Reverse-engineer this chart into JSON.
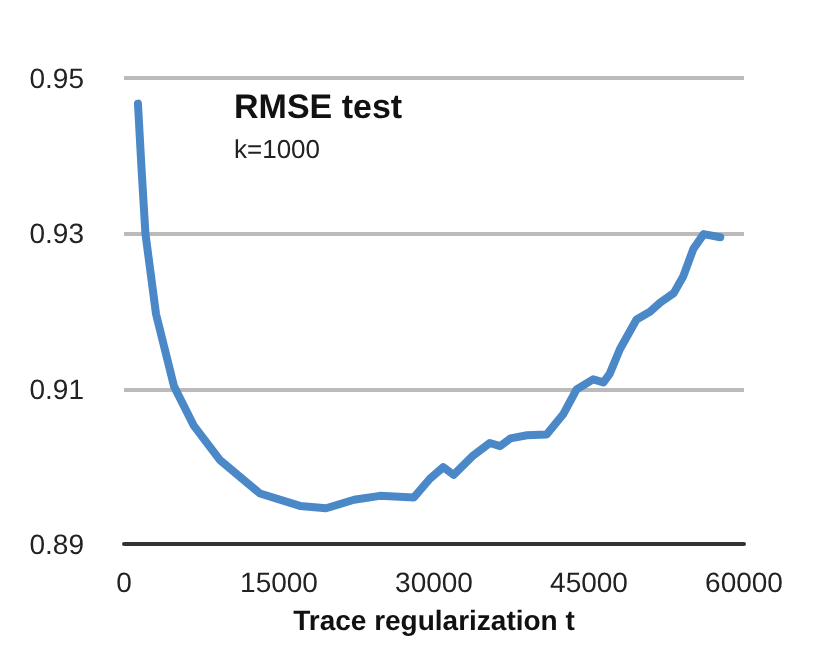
{
  "chart_data": {
    "type": "line",
    "title": "RMSE test",
    "subtitle": "k=1000",
    "xlabel": "Trace regularization t",
    "x": [
      1350,
      1680,
      2070,
      3100,
      4840,
      6770,
      9290,
      13160,
      17030,
      19550,
      22260,
      24770,
      28060,
      29600,
      30900,
      31900,
      33800,
      35400,
      36400,
      37400,
      39000,
      40900,
      42500,
      43800,
      45400,
      46400,
      47000,
      48000,
      49600,
      50900,
      51900,
      53200,
      54100,
      55100,
      56100,
      57700
    ],
    "series": [
      {
        "color": "#4a88c8",
        "values": [
          0.9467,
          0.9387,
          0.93,
          0.9196,
          0.9103,
          0.9052,
          0.9008,
          0.8965,
          0.8949,
          0.8946,
          0.8957,
          0.8962,
          0.896,
          0.8984,
          0.8999,
          0.8989,
          0.9014,
          0.903,
          0.9026,
          0.9036,
          0.904,
          0.9041,
          0.9067,
          0.9099,
          0.9112,
          0.9108,
          0.9119,
          0.9151,
          0.9189,
          0.9199,
          0.9211,
          0.9223,
          0.9244,
          0.928,
          0.9299,
          0.9295
        ]
      }
    ],
    "xlim": [
      0,
      60000
    ],
    "xticks": [
      0,
      15000,
      30000,
      45000,
      60000
    ],
    "ylim": [
      0.89,
      0.95
    ],
    "yticks": [
      0.89,
      0.91,
      0.93,
      0.95
    ],
    "grid": "y",
    "marker": "none",
    "line_style": "solid"
  }
}
